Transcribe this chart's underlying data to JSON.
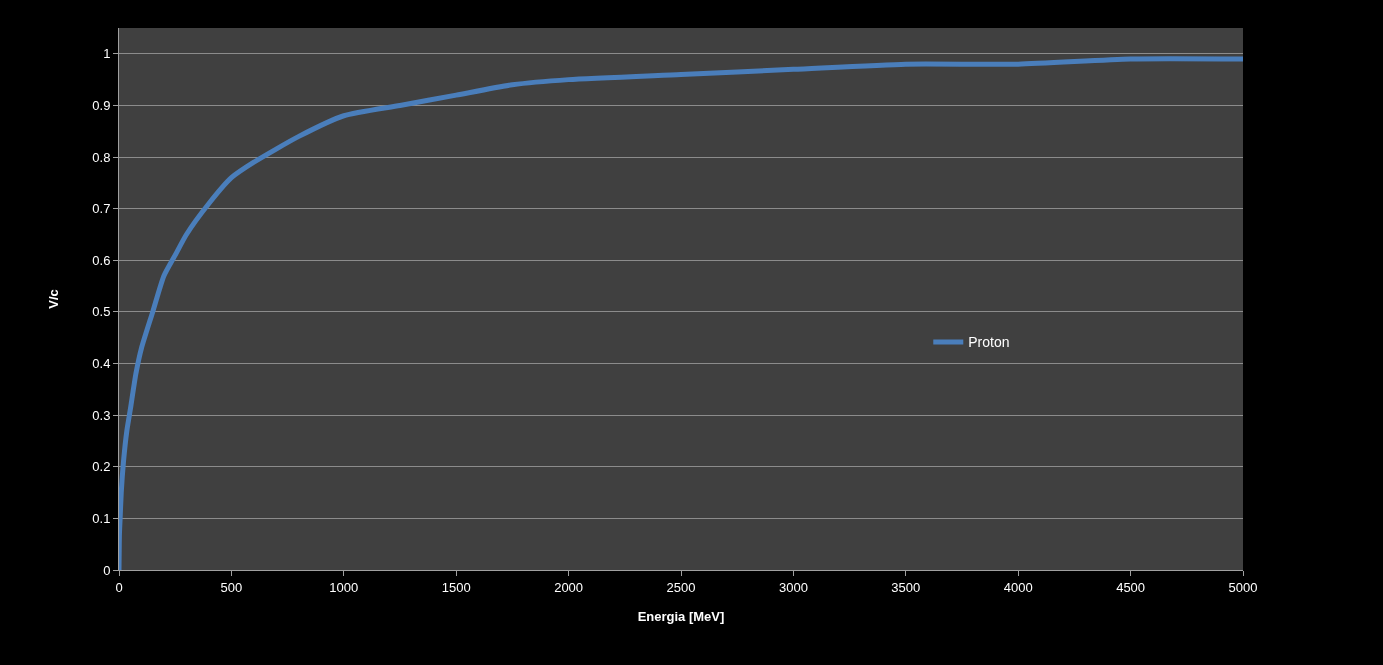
{
  "chart_data": {
    "type": "line",
    "xlabel": "Energia [MeV]",
    "ylabel": "V/c",
    "series": [
      {
        "name": "Proton",
        "color": "#4a7ebb",
        "x": [
          0,
          2,
          5,
          10,
          20,
          35,
          50,
          75,
          100,
          150,
          200,
          250,
          300,
          400,
          500,
          600,
          800,
          1000,
          1250,
          1500,
          1750,
          2000,
          2500,
          3000,
          3500,
          4000,
          4500,
          5000
        ],
        "values": [
          0,
          0.07,
          0.1,
          0.15,
          0.21,
          0.27,
          0.31,
          0.38,
          0.43,
          0.5,
          0.57,
          0.61,
          0.65,
          0.71,
          0.76,
          0.79,
          0.84,
          0.88,
          0.9,
          0.92,
          0.94,
          0.95,
          0.96,
          0.97,
          0.98,
          0.98,
          0.99,
          0.99
        ]
      }
    ],
    "xlim": [
      0,
      5000
    ],
    "xticks": [
      0,
      500,
      1000,
      1500,
      2000,
      2500,
      3000,
      3500,
      4000,
      4500,
      5000
    ],
    "ylim": [
      0,
      1.05
    ],
    "yticks": [
      0,
      0.1,
      0.2,
      0.3,
      0.4,
      0.5,
      0.6,
      0.7,
      0.8,
      0.9,
      1
    ],
    "grid": "y",
    "legend": "right",
    "marker": "none",
    "line_style": "solid"
  }
}
